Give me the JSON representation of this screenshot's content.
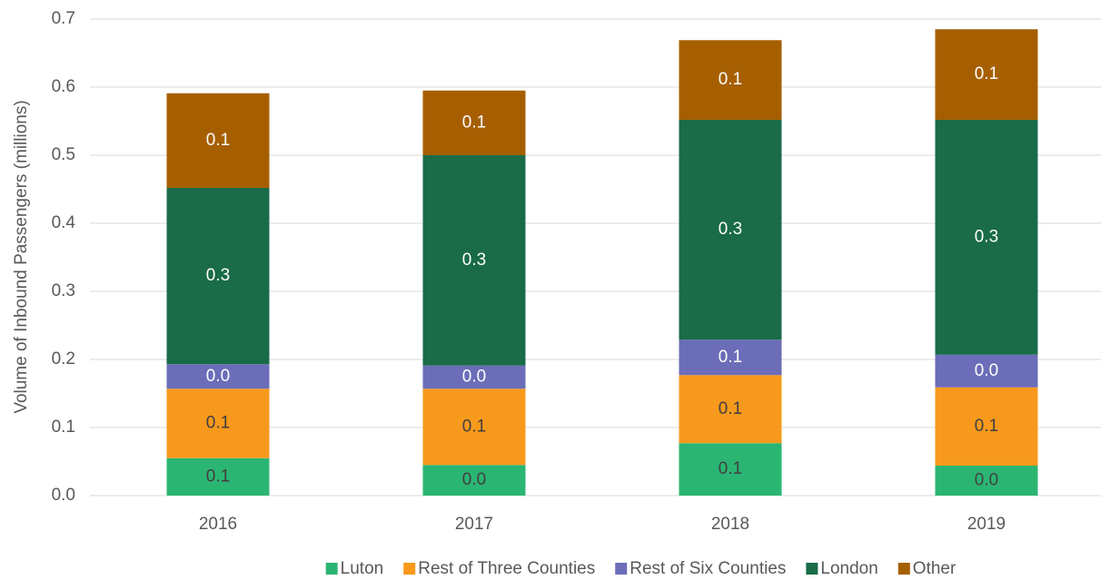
{
  "chart_data": {
    "type": "stacked_bar",
    "y_label": "Volume of Inbound Passengers (millions)",
    "categories": [
      "2016",
      "2017",
      "2018",
      "2019"
    ],
    "ylim": [
      0,
      0.7
    ],
    "yticks": [
      {
        "value": 0,
        "label": "0.0"
      },
      0.1,
      0.2,
      0.3,
      0.4,
      0.5,
      0.6,
      0.7
    ],
    "grid": true,
    "legend": "bottom",
    "series": [
      {
        "name": "Luton",
        "color": "#2bb573",
        "values": [
          0.055,
          0.045,
          0.077,
          0.044
        ],
        "value_labels": [
          "0.1",
          "0.0",
          "0.1",
          "0.0"
        ]
      },
      {
        "name": "Rest of Three Counties",
        "color": "#f7991c",
        "values": [
          0.102,
          0.112,
          0.1,
          0.115
        ],
        "value_labels": [
          "0.1",
          "0.1",
          "0.1",
          "0.1"
        ]
      },
      {
        "name": "Rest of Six Counties",
        "color": "#6b6db8",
        "values": [
          0.036,
          0.034,
          0.052,
          0.048
        ],
        "value_labels": [
          "0.0",
          "0.0",
          "0.1",
          "0.0"
        ]
      },
      {
        "name": "London",
        "color": "#1a6b47",
        "values": [
          0.259,
          0.309,
          0.323,
          0.345
        ],
        "value_labels": [
          "0.3",
          "0.3",
          "0.3",
          "0.3"
        ]
      },
      {
        "name": "Other",
        "color": "#a65f00",
        "values": [
          0.139,
          0.095,
          0.117,
          0.133
        ],
        "value_labels": [
          "0.1",
          "0.1",
          "0.1",
          "0.1"
        ]
      }
    ]
  }
}
